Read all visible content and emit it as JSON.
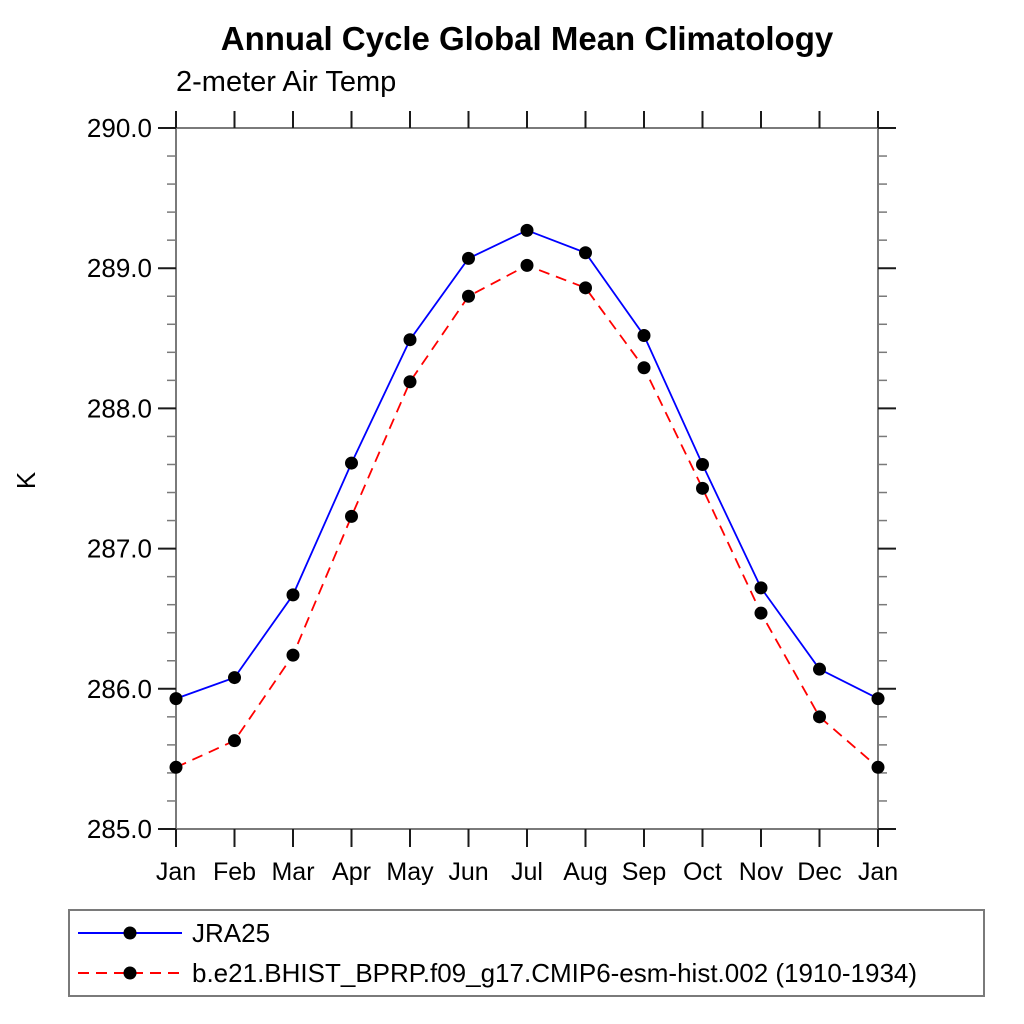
{
  "title": "Annual Cycle Global Mean Climatology",
  "subtitle": "2-meter Air Temp",
  "ylabel": "K",
  "colors": {
    "background": "#ffffff",
    "frame": "#7a7a7a",
    "major_tick": "#1a1a1a",
    "minor_tick": "#7a7a7a",
    "marker": "#000000",
    "series_jra25": "#0000ff",
    "series_model": "#ff0000",
    "text": "#000000"
  },
  "chart_data": {
    "type": "line",
    "title": "Annual Cycle Global Mean Climatology",
    "subtitle": "2-meter Air Temp",
    "xlabel": "",
    "ylabel": "K",
    "categories": [
      "Jan",
      "Feb",
      "Mar",
      "Apr",
      "May",
      "Jun",
      "Jul",
      "Aug",
      "Sep",
      "Oct",
      "Nov",
      "Dec",
      "Jan"
    ],
    "ylim": [
      285.0,
      290.0
    ],
    "ytick_major_interval": 1.0,
    "ytick_minor_interval": 0.2,
    "ytick_labels": [
      "285.0",
      "286.0",
      "287.0",
      "288.0",
      "289.0",
      "290.0"
    ],
    "grid": false,
    "tick_direction": "out",
    "legend_position": "bottom-left-boxed",
    "series": [
      {
        "name": "JRA25",
        "color": "#0000ff",
        "style": "solid",
        "dasharray": "",
        "marker": "circle",
        "marker_color": "#000000",
        "values": [
          285.93,
          286.08,
          286.67,
          287.61,
          288.49,
          289.07,
          289.27,
          289.11,
          288.52,
          287.6,
          286.72,
          286.14,
          285.93
        ]
      },
      {
        "name": "b.e21.BHIST_BPRP.f09_g17.CMIP6-esm-hist.002 (1910-1934)",
        "color": "#ff0000",
        "style": "dashed",
        "dasharray": "11,7",
        "marker": "circle",
        "marker_color": "#000000",
        "values": [
          285.44,
          285.63,
          286.24,
          287.23,
          288.19,
          288.8,
          289.02,
          288.86,
          288.29,
          287.43,
          286.54,
          285.8,
          285.44
        ]
      }
    ]
  }
}
